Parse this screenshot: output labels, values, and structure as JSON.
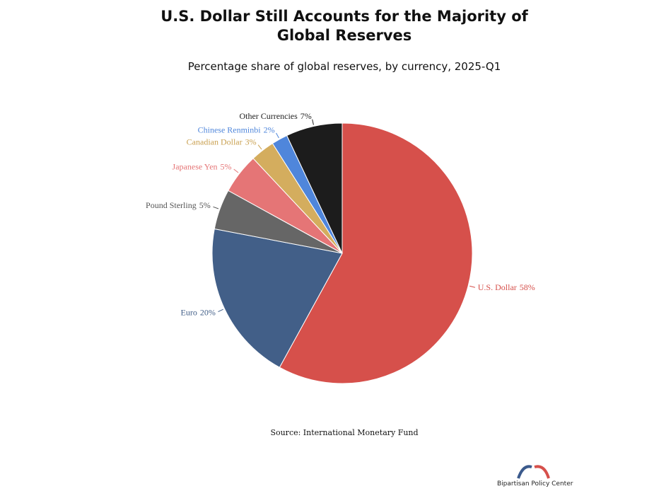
{
  "chart_data": {
    "type": "pie",
    "title": "U.S. Dollar Still Accounts for the Majority of Global Reserves",
    "subtitle": "Percentage share of global reserves, by currency, 2025-Q1",
    "categories": [
      "U.S. Dollar",
      "Euro",
      "Pound Sterling",
      "Japanese Yen",
      "Canadian Dollar",
      "Chinese Renminbi",
      "Other Currencies"
    ],
    "values": [
      58,
      20,
      5,
      5,
      3,
      2,
      7
    ],
    "value_labels": [
      "58%",
      "20%",
      "5%",
      "5%",
      "3%",
      "2%",
      "7%"
    ],
    "colors": [
      "#d6504b",
      "#425f88",
      "#666666",
      "#e57576",
      "#d4ad5e",
      "#4f86db",
      "#1c1c1c"
    ],
    "label_colors": [
      "#d6504b",
      "#425f88",
      "#555555",
      "#e57576",
      "#c9a050",
      "#4f86db",
      "#222222"
    ],
    "source": "Source: International Monetary Fund"
  },
  "logo": {
    "text": "Bipartisan Policy Center"
  }
}
